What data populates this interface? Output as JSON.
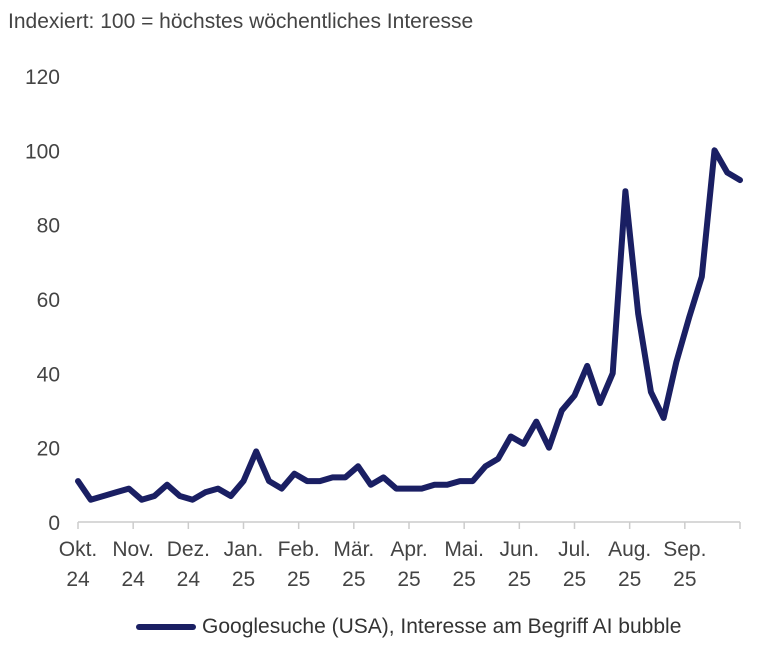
{
  "chart_data": {
    "type": "line",
    "title": "",
    "subtitle": "Indexiert: 100 = höchstes wöchentliches Interesse",
    "xlabel": "",
    "ylabel": "",
    "ylim": [
      0,
      120
    ],
    "yticks": [
      "0",
      "20",
      "40",
      "60",
      "80",
      "100",
      "120"
    ],
    "grid": false,
    "legend_position": "bottom-right",
    "x_month_labels": [
      [
        "Okt.",
        "24"
      ],
      [
        "Nov.",
        "24"
      ],
      [
        "Dez.",
        "24"
      ],
      [
        "Jan.",
        "25"
      ],
      [
        "Feb.",
        "25"
      ],
      [
        "Mär.",
        "25"
      ],
      [
        "Apr.",
        "25"
      ],
      [
        "Mai.",
        "25"
      ],
      [
        "Jun.",
        "25"
      ],
      [
        "Jul.",
        "25"
      ],
      [
        "Aug.",
        "25"
      ],
      [
        "Sep.",
        "25"
      ]
    ],
    "series": [
      {
        "name": "Googlesuche (USA), Interesse am Begriff AI bubble",
        "color": "#1a1f63",
        "values": [
          11,
          6,
          7,
          8,
          9,
          6,
          7,
          10,
          7,
          6,
          8,
          9,
          7,
          11,
          19,
          11,
          9,
          13,
          11,
          11,
          12,
          12,
          15,
          10,
          12,
          9,
          9,
          9,
          10,
          10,
          11,
          11,
          15,
          17,
          23,
          21,
          27,
          20,
          30,
          34,
          42,
          32,
          40,
          89,
          56,
          35,
          28,
          43,
          55,
          66,
          100,
          94,
          92
        ]
      }
    ]
  }
}
